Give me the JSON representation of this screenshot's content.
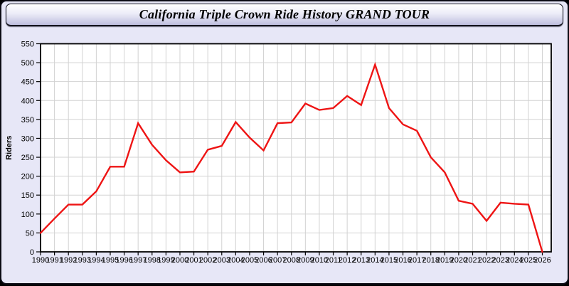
{
  "colors": {
    "background": "#000000",
    "panel_bg": "#e7e7f7",
    "header_gradient_top": "#ffffff",
    "header_gradient_bottom": "#bfbfdf",
    "plot_bg": "#ffffff",
    "grid": "#d2d2d2",
    "axis": "#000000",
    "line": "#ee1414"
  },
  "chart_data": {
    "type": "line",
    "title": "California Triple Crown Ride History GRAND TOUR",
    "xlabel": "",
    "ylabel": "Riders",
    "ylim": [
      0,
      550
    ],
    "yticks": [
      0,
      50,
      100,
      150,
      200,
      250,
      300,
      350,
      400,
      450,
      500,
      550
    ],
    "grid": true,
    "legend_position": "none",
    "categories": [
      "1990",
      "1991",
      "1992",
      "1993",
      "1994",
      "1995",
      "1996",
      "1997",
      "1998",
      "1999",
      "2000",
      "2001",
      "2002",
      "2003",
      "2004",
      "2005",
      "2006",
      "2007",
      "2008",
      "2009",
      "2010",
      "2011",
      "2012",
      "2013",
      "2014",
      "2015",
      "2016",
      "2017",
      "2018",
      "2019",
      "2020",
      "2021",
      "2022",
      "2023",
      "2024",
      "2025",
      "2026"
    ],
    "series": [
      {
        "name": "Riders",
        "color": "#ee1414",
        "values": [
          50,
          88,
          125,
          125,
          160,
          225,
          225,
          340,
          283,
          242,
          210,
          212,
          270,
          280,
          343,
          302,
          268,
          340,
          342,
          392,
          375,
          380,
          412,
          388,
          495,
          380,
          337,
          320,
          250,
          210,
          135,
          127,
          82,
          130,
          127,
          125,
          0
        ]
      }
    ]
  }
}
